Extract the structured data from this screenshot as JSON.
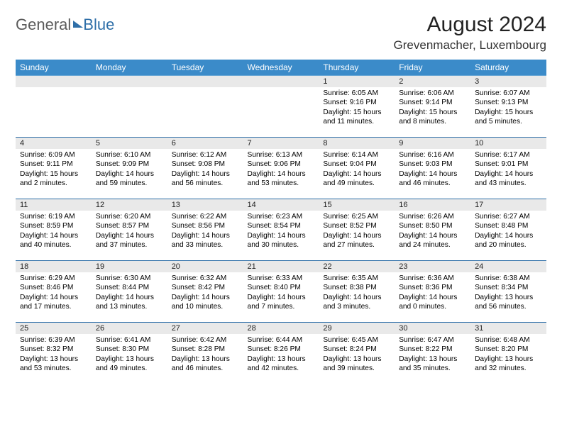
{
  "brand": {
    "part1": "General",
    "part2": "Blue"
  },
  "title": "August 2024",
  "location": "Grevenmacher, Luxembourg",
  "columns": [
    "Sunday",
    "Monday",
    "Tuesday",
    "Wednesday",
    "Thursday",
    "Friday",
    "Saturday"
  ],
  "colors": {
    "header_bg": "#3b8bc9",
    "header_text": "#ffffff",
    "daynum_bg": "#e9e9e9",
    "row_border": "#2f6fa8",
    "text": "#000000",
    "brand_gray": "#5a5a5a",
    "brand_blue": "#2f6fa8",
    "background": "#ffffff"
  },
  "typography": {
    "title_fontsize": 30,
    "location_fontsize": 17,
    "header_fontsize": 12,
    "cell_fontsize": 10.2,
    "logo_fontsize": 22
  },
  "layout": {
    "cols": 7,
    "rows": 5
  },
  "weeks": [
    [
      {
        "day": null
      },
      {
        "day": null
      },
      {
        "day": null
      },
      {
        "day": null
      },
      {
        "day": 1,
        "sunrise": "6:05 AM",
        "sunset": "9:16 PM",
        "daylight": "15 hours and 11 minutes."
      },
      {
        "day": 2,
        "sunrise": "6:06 AM",
        "sunset": "9:14 PM",
        "daylight": "15 hours and 8 minutes."
      },
      {
        "day": 3,
        "sunrise": "6:07 AM",
        "sunset": "9:13 PM",
        "daylight": "15 hours and 5 minutes."
      }
    ],
    [
      {
        "day": 4,
        "sunrise": "6:09 AM",
        "sunset": "9:11 PM",
        "daylight": "15 hours and 2 minutes."
      },
      {
        "day": 5,
        "sunrise": "6:10 AM",
        "sunset": "9:09 PM",
        "daylight": "14 hours and 59 minutes."
      },
      {
        "day": 6,
        "sunrise": "6:12 AM",
        "sunset": "9:08 PM",
        "daylight": "14 hours and 56 minutes."
      },
      {
        "day": 7,
        "sunrise": "6:13 AM",
        "sunset": "9:06 PM",
        "daylight": "14 hours and 53 minutes."
      },
      {
        "day": 8,
        "sunrise": "6:14 AM",
        "sunset": "9:04 PM",
        "daylight": "14 hours and 49 minutes."
      },
      {
        "day": 9,
        "sunrise": "6:16 AM",
        "sunset": "9:03 PM",
        "daylight": "14 hours and 46 minutes."
      },
      {
        "day": 10,
        "sunrise": "6:17 AM",
        "sunset": "9:01 PM",
        "daylight": "14 hours and 43 minutes."
      }
    ],
    [
      {
        "day": 11,
        "sunrise": "6:19 AM",
        "sunset": "8:59 PM",
        "daylight": "14 hours and 40 minutes."
      },
      {
        "day": 12,
        "sunrise": "6:20 AM",
        "sunset": "8:57 PM",
        "daylight": "14 hours and 37 minutes."
      },
      {
        "day": 13,
        "sunrise": "6:22 AM",
        "sunset": "8:56 PM",
        "daylight": "14 hours and 33 minutes."
      },
      {
        "day": 14,
        "sunrise": "6:23 AM",
        "sunset": "8:54 PM",
        "daylight": "14 hours and 30 minutes."
      },
      {
        "day": 15,
        "sunrise": "6:25 AM",
        "sunset": "8:52 PM",
        "daylight": "14 hours and 27 minutes."
      },
      {
        "day": 16,
        "sunrise": "6:26 AM",
        "sunset": "8:50 PM",
        "daylight": "14 hours and 24 minutes."
      },
      {
        "day": 17,
        "sunrise": "6:27 AM",
        "sunset": "8:48 PM",
        "daylight": "14 hours and 20 minutes."
      }
    ],
    [
      {
        "day": 18,
        "sunrise": "6:29 AM",
        "sunset": "8:46 PM",
        "daylight": "14 hours and 17 minutes."
      },
      {
        "day": 19,
        "sunrise": "6:30 AM",
        "sunset": "8:44 PM",
        "daylight": "14 hours and 13 minutes."
      },
      {
        "day": 20,
        "sunrise": "6:32 AM",
        "sunset": "8:42 PM",
        "daylight": "14 hours and 10 minutes."
      },
      {
        "day": 21,
        "sunrise": "6:33 AM",
        "sunset": "8:40 PM",
        "daylight": "14 hours and 7 minutes."
      },
      {
        "day": 22,
        "sunrise": "6:35 AM",
        "sunset": "8:38 PM",
        "daylight": "14 hours and 3 minutes."
      },
      {
        "day": 23,
        "sunrise": "6:36 AM",
        "sunset": "8:36 PM",
        "daylight": "14 hours and 0 minutes."
      },
      {
        "day": 24,
        "sunrise": "6:38 AM",
        "sunset": "8:34 PM",
        "daylight": "13 hours and 56 minutes."
      }
    ],
    [
      {
        "day": 25,
        "sunrise": "6:39 AM",
        "sunset": "8:32 PM",
        "daylight": "13 hours and 53 minutes."
      },
      {
        "day": 26,
        "sunrise": "6:41 AM",
        "sunset": "8:30 PM",
        "daylight": "13 hours and 49 minutes."
      },
      {
        "day": 27,
        "sunrise": "6:42 AM",
        "sunset": "8:28 PM",
        "daylight": "13 hours and 46 minutes."
      },
      {
        "day": 28,
        "sunrise": "6:44 AM",
        "sunset": "8:26 PM",
        "daylight": "13 hours and 42 minutes."
      },
      {
        "day": 29,
        "sunrise": "6:45 AM",
        "sunset": "8:24 PM",
        "daylight": "13 hours and 39 minutes."
      },
      {
        "day": 30,
        "sunrise": "6:47 AM",
        "sunset": "8:22 PM",
        "daylight": "13 hours and 35 minutes."
      },
      {
        "day": 31,
        "sunrise": "6:48 AM",
        "sunset": "8:20 PM",
        "daylight": "13 hours and 32 minutes."
      }
    ]
  ],
  "labels": {
    "sunrise": "Sunrise:",
    "sunset": "Sunset:",
    "daylight": "Daylight:"
  }
}
